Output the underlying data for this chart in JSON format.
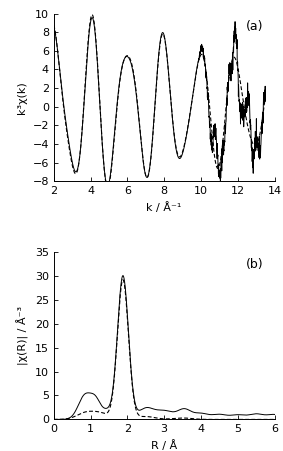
{
  "panel_a": {
    "xlabel": "k / Å⁻¹",
    "ylabel": "k³χ(k)",
    "xlim": [
      2,
      14
    ],
    "ylim": [
      -8,
      10
    ],
    "yticks": [
      -8,
      -6,
      -4,
      -2,
      0,
      2,
      4,
      6,
      8,
      10
    ],
    "xticks": [
      2,
      4,
      6,
      8,
      10,
      12,
      14
    ],
    "label": "(a)"
  },
  "panel_b": {
    "xlabel": "R / Å",
    "ylabel": "|χ(R)| / Å⁻³",
    "xlim": [
      0,
      6
    ],
    "ylim": [
      0,
      35
    ],
    "yticks": [
      0,
      5,
      10,
      15,
      20,
      25,
      30,
      35
    ],
    "xticks": [
      0,
      1,
      2,
      3,
      4,
      5,
      6
    ],
    "label": "(b)"
  },
  "line_color": "#000000",
  "bg_color": "#ffffff",
  "font_size": 8,
  "label_font_size": 9
}
